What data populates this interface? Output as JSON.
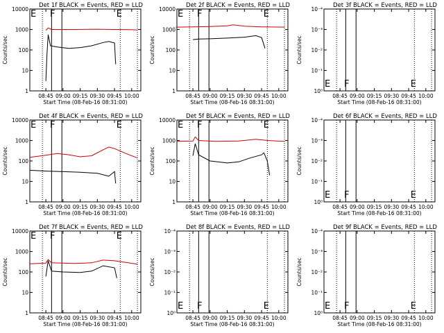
{
  "chart_data": [
    {
      "type": "line",
      "title": "Det 1f BLACK = Events, RED = LLD",
      "ylabel": "Counts/sec",
      "xlabel": "Start Time (08-Feb-16 08:31:00)",
      "x_ticks": [
        "08:45",
        "09:00",
        "09:15",
        "09:30",
        "09:45",
        "10:00"
      ],
      "y_ticks": [
        "1",
        "10",
        "100",
        "1000",
        "10000"
      ],
      "y_scale": "log",
      "ylim": [
        1,
        10000
      ],
      "markers": [
        "E",
        "F",
        "E"
      ],
      "series": [
        {
          "name": "Events",
          "color": "#000000",
          "points": [
            [
              "08:45",
              3
            ],
            [
              "08:46",
              60
            ],
            [
              "08:47",
              560
            ],
            [
              "08:49",
              160
            ],
            [
              "08:55",
              140
            ],
            [
              "09:05",
              120
            ],
            [
              "09:15",
              130
            ],
            [
              "09:25",
              160
            ],
            [
              "09:35",
              230
            ],
            [
              "09:40",
              260
            ],
            [
              "09:45",
              220
            ],
            [
              "09:46",
              20
            ]
          ]
        },
        {
          "name": "LLD",
          "color": "#cc0000",
          "points": [
            [
              "08:45",
              900
            ],
            [
              "08:47",
              1200
            ],
            [
              "08:50",
              1000
            ],
            [
              "09:10",
              1000
            ],
            [
              "09:30",
              1030
            ],
            [
              "09:45",
              1000
            ],
            [
              "10:00",
              980
            ],
            [
              "10:05",
              950
            ]
          ]
        }
      ]
    },
    {
      "type": "line",
      "title": "Det 2f BLACK = Events, RED = LLD",
      "ylabel": "Counts/sec",
      "xlabel": "Start Time (08-Feb-16 08:31:00)",
      "x_ticks": [
        "08:45",
        "09:00",
        "09:15",
        "09:30",
        "09:45",
        "10:00"
      ],
      "y_ticks": [
        "1",
        "10",
        "100",
        "1000",
        "10000"
      ],
      "y_scale": "log",
      "ylim": [
        1,
        10000
      ],
      "markers": [
        "E",
        "F",
        "E"
      ],
      "series": [
        {
          "name": "Events",
          "color": "#000000",
          "points": [
            [
              "08:45",
              320
            ],
            [
              "08:50",
              340
            ],
            [
              "09:00",
              350
            ],
            [
              "09:15",
              380
            ],
            [
              "09:30",
              420
            ],
            [
              "09:40",
              500
            ],
            [
              "09:45",
              400
            ],
            [
              "09:48",
              120
            ]
          ]
        },
        {
          "name": "LLD",
          "color": "#cc0000",
          "points": [
            [
              "08:30",
              1300
            ],
            [
              "08:45",
              1350
            ],
            [
              "09:00",
              1400
            ],
            [
              "09:15",
              1500
            ],
            [
              "09:20",
              1700
            ],
            [
              "09:30",
              1450
            ],
            [
              "09:45",
              1350
            ],
            [
              "10:05",
              1300
            ]
          ]
        }
      ]
    },
    {
      "type": "line",
      "title": "Det 3f BLACK = Events, RED = LLD",
      "ylabel": "Counts/sec",
      "xlabel": "Start Time (08-Feb-16 08:31:00)",
      "x_ticks": [
        "08:45",
        "09:00",
        "09:15",
        "09:30",
        "09:45",
        "10:00"
      ],
      "y_ticks": [
        "10⁰",
        "10⁻¹",
        "10⁻²",
        "10⁻³",
        "10⁻⁴"
      ],
      "y_scale": "log",
      "markers": [
        "E",
        "F",
        "E"
      ],
      "series": []
    },
    {
      "type": "line",
      "title": "Det 4f BLACK = Events, RED = LLD",
      "ylabel": "Counts/sec",
      "xlabel": "Start Time (08-Feb-16 08:31:00)",
      "x_ticks": [
        "08:45",
        "09:00",
        "09:15",
        "09:30",
        "09:45",
        "10:00"
      ],
      "y_ticks": [
        "1",
        "10",
        "100",
        "1000",
        "10000"
      ],
      "y_scale": "log",
      "ylim": [
        1,
        10000
      ],
      "markers": [
        "E",
        "F",
        "E"
      ],
      "series": [
        {
          "name": "Events",
          "color": "#000000",
          "points": [
            [
              "08:31",
              35
            ],
            [
              "08:45",
              32
            ],
            [
              "09:00",
              30
            ],
            [
              "09:15",
              28
            ],
            [
              "09:30",
              25
            ],
            [
              "09:40",
              18
            ],
            [
              "09:45",
              30
            ],
            [
              "09:46",
              8
            ]
          ]
        },
        {
          "name": "LLD",
          "color": "#cc0000",
          "points": [
            [
              "08:31",
              150
            ],
            [
              "08:45",
              190
            ],
            [
              "08:55",
              230
            ],
            [
              "09:05",
              200
            ],
            [
              "09:15",
              160
            ],
            [
              "09:25",
              180
            ],
            [
              "09:35",
              350
            ],
            [
              "09:40",
              480
            ],
            [
              "09:45",
              400
            ],
            [
              "09:55",
              230
            ],
            [
              "10:05",
              140
            ]
          ]
        }
      ]
    },
    {
      "type": "line",
      "title": "Det 5f BLACK = Events, RED = LLD",
      "ylabel": "Counts/sec",
      "xlabel": "Start Time (08-Feb-16 08:31:00)",
      "x_ticks": [
        "08:45",
        "09:00",
        "09:15",
        "09:30",
        "09:45",
        "10:00"
      ],
      "y_ticks": [
        "1",
        "10",
        "100",
        "1000",
        "10000"
      ],
      "y_scale": "log",
      "ylim": [
        1,
        10000
      ],
      "markers": [
        "E",
        "F",
        "E"
      ],
      "series": [
        {
          "name": "Events",
          "color": "#000000",
          "points": [
            [
              "08:45",
              180
            ],
            [
              "08:47",
              700
            ],
            [
              "08:50",
              200
            ],
            [
              "09:00",
              100
            ],
            [
              "09:15",
              80
            ],
            [
              "09:25",
              90
            ],
            [
              "09:35",
              140
            ],
            [
              "09:45",
              200
            ],
            [
              "09:47",
              250
            ],
            [
              "09:50",
              100
            ],
            [
              "09:52",
              20
            ]
          ]
        },
        {
          "name": "LLD",
          "color": "#cc0000",
          "points": [
            [
              "08:31",
              900
            ],
            [
              "08:45",
              950
            ],
            [
              "08:47",
              1500
            ],
            [
              "08:50",
              1000
            ],
            [
              "09:05",
              900
            ],
            [
              "09:25",
              950
            ],
            [
              "09:40",
              1150
            ],
            [
              "09:50",
              1000
            ],
            [
              "10:05",
              900
            ]
          ]
        }
      ]
    },
    {
      "type": "line",
      "title": "Det 6f BLACK = Events, RED = LLD",
      "ylabel": "Counts/sec",
      "xlabel": "Start Time (08-Feb-16 08:31:00)",
      "x_ticks": [
        "08:45",
        "09:00",
        "09:15",
        "09:30",
        "09:45",
        "10:00"
      ],
      "y_ticks": [
        "10⁰",
        "10⁻¹",
        "10⁻²",
        "10⁻³",
        "10⁻⁴"
      ],
      "y_scale": "log",
      "markers": [
        "E",
        "F",
        "E"
      ],
      "series": []
    },
    {
      "type": "line",
      "title": "Det 7f BLACK = Events, RED = LLD",
      "ylabel": "Counts/sec",
      "xlabel": "Start Time (08-Feb-16 08:31:00)",
      "x_ticks": [
        "08:45",
        "09:00",
        "09:15",
        "09:30",
        "09:45",
        "10:00"
      ],
      "y_ticks": [
        "1",
        "10",
        "100",
        "1000",
        "10000"
      ],
      "y_scale": "log",
      "ylim": [
        1,
        10000
      ],
      "markers": [
        "E",
        "F",
        "E"
      ],
      "series": [
        {
          "name": "Events",
          "color": "#000000",
          "points": [
            [
              "08:45",
              60
            ],
            [
              "08:47",
              350
            ],
            [
              "08:50",
              110
            ],
            [
              "09:00",
              100
            ],
            [
              "09:15",
              95
            ],
            [
              "09:25",
              110
            ],
            [
              "09:35",
              200
            ],
            [
              "09:45",
              160
            ],
            [
              "09:47",
              50
            ]
          ]
        },
        {
          "name": "LLD",
          "color": "#cc0000",
          "points": [
            [
              "08:31",
              250
            ],
            [
              "08:45",
              270
            ],
            [
              "08:47",
              400
            ],
            [
              "08:50",
              280
            ],
            [
              "09:10",
              260
            ],
            [
              "09:25",
              280
            ],
            [
              "09:35",
              380
            ],
            [
              "09:45",
              350
            ],
            [
              "10:05",
              240
            ]
          ]
        }
      ]
    },
    {
      "type": "line",
      "title": "Det 8f BLACK = Events, RED = LLD",
      "ylabel": "Counts/sec",
      "xlabel": "Start Time (08-Feb-16 08:31:00)",
      "x_ticks": [
        "08:45",
        "09:00",
        "09:15",
        "09:30",
        "09:45",
        "10:00"
      ],
      "y_ticks": [
        "10⁰",
        "10⁻¹",
        "10⁻²",
        "10⁻³",
        "10⁻⁴"
      ],
      "y_scale": "log",
      "markers": [
        "E",
        "F",
        "E"
      ],
      "series": []
    },
    {
      "type": "line",
      "title": "Det 9f BLACK = Events, RED = LLD",
      "ylabel": "Counts/sec",
      "xlabel": "Start Time (08-Feb-16 08:31:00)",
      "x_ticks": [
        "08:45",
        "09:00",
        "09:15",
        "09:30",
        "09:45",
        "10:00"
      ],
      "y_ticks": [
        "10⁰",
        "10⁻¹",
        "10⁻²",
        "10⁻³",
        "10⁻⁴"
      ],
      "y_scale": "log",
      "markers": [
        "E",
        "F",
        "E"
      ],
      "series": []
    }
  ]
}
